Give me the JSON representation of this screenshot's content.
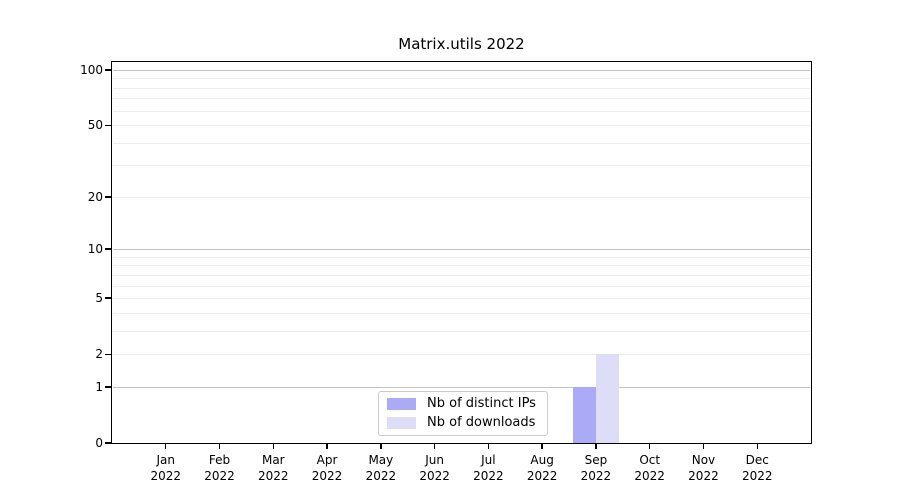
{
  "chart_data": {
    "type": "bar",
    "title": "Matrix.utils 2022",
    "categories": [
      "Jan 2022",
      "Feb 2022",
      "Mar 2022",
      "Apr 2022",
      "May 2022",
      "Jun 2022",
      "Jul 2022",
      "Aug 2022",
      "Sep 2022",
      "Oct 2022",
      "Nov 2022",
      "Dec 2022"
    ],
    "series": [
      {
        "name": "Nb of distinct IPs",
        "color": "#aaaaf6",
        "values": [
          0,
          0,
          0,
          0,
          0,
          0,
          0,
          0,
          1,
          0,
          0,
          0
        ]
      },
      {
        "name": "Nb of downloads",
        "color": "#ddddf8",
        "values": [
          0,
          0,
          0,
          0,
          0,
          0,
          0,
          0,
          2,
          0,
          0,
          0
        ]
      }
    ],
    "yscale": "log1p",
    "yticks": [
      0,
      1,
      2,
      5,
      10,
      20,
      50,
      100
    ],
    "ylim": [
      0,
      110
    ],
    "xlabel": "",
    "ylabel": "",
    "grid": {
      "orientation": "horizontal",
      "major": [
        1,
        10,
        100
      ],
      "minor": [
        2,
        3,
        4,
        5,
        6,
        7,
        8,
        9,
        20,
        30,
        40,
        50,
        60,
        70,
        80,
        90
      ],
      "major_color": "#c3c3c3",
      "minor_color": "#ededed"
    },
    "legend": {
      "position": "lower center",
      "border_color": "#cccccc",
      "background": "#ffffff"
    },
    "axis_color": "#000000",
    "background": "#ffffff"
  }
}
